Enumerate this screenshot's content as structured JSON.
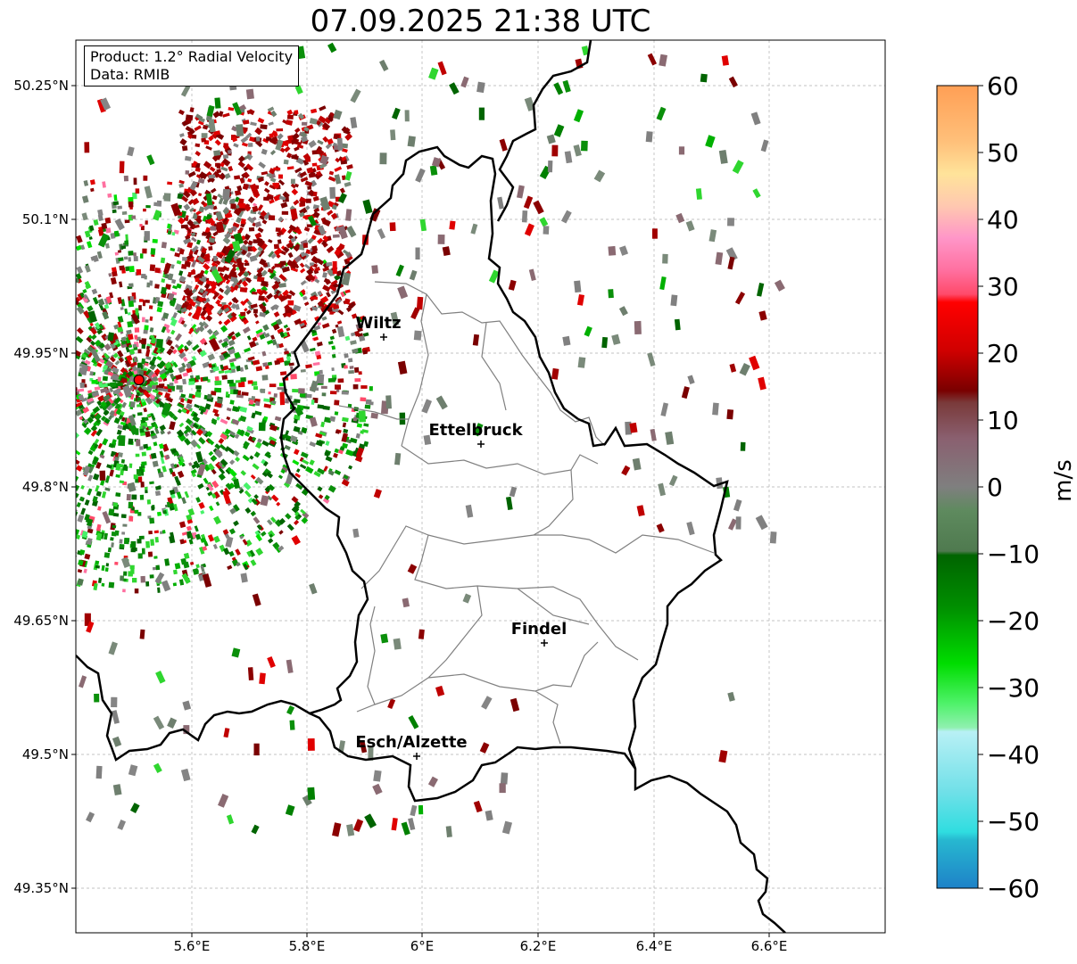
{
  "title": "07.09.2025 21:38 UTC",
  "info_box": {
    "line1": "Product: 1.2° Radial Velocity",
    "line2": "Data: RMIB"
  },
  "axes": {
    "lat_ticks": [
      "50.25°N",
      "50.1°N",
      "49.95°N",
      "49.8°N",
      "49.65°N",
      "49.5°N",
      "49.35°N"
    ],
    "lon_ticks": [
      "5.6°E",
      "5.8°E",
      "6°E",
      "6.2°E",
      "6.4°E",
      "6.6°E"
    ],
    "grid": true
  },
  "cities": [
    {
      "name": "Wiltz"
    },
    {
      "name": "Ettelbruck"
    },
    {
      "name": "Findel"
    },
    {
      "name": "Esch/Alzette"
    }
  ],
  "radar_site": {
    "lat": 49.92,
    "lon": 5.51
  },
  "colorbar": {
    "unit": "m/s",
    "ticks": [
      "60",
      "50",
      "40",
      "30",
      "20",
      "10",
      "0",
      "−10",
      "−20",
      "−30",
      "−40",
      "−50",
      "−60"
    ],
    "range": [
      -60,
      60
    ]
  },
  "colors": {
    "boundary": "#000000",
    "canton": "#808080",
    "gridline": "#b0b0b0",
    "radar_dot": "#ff0000"
  }
}
